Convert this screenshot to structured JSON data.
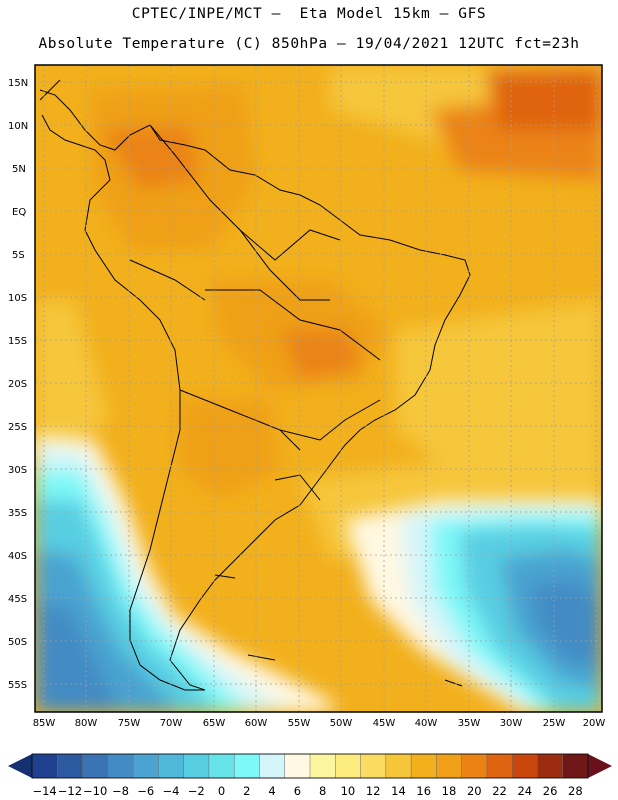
{
  "header": {
    "line1": "CPTEC/INPE/MCT –  Eta Model 15km – GFS",
    "line2": "Absolute Temperature (C) 850hPa – 19/04/2021 12UTC fct=23h"
  },
  "map": {
    "lat_labels": [
      "15N",
      "10N",
      "5N",
      "EQ",
      "5S",
      "10S",
      "15S",
      "20S",
      "25S",
      "30S",
      "35S",
      "40S",
      "45S",
      "50S",
      "55S"
    ],
    "lon_labels": [
      "85W",
      "80W",
      "75W",
      "70W",
      "65W",
      "60W",
      "55W",
      "50W",
      "45W",
      "40W",
      "35W",
      "30W",
      "25W",
      "20W"
    ],
    "gridlines": true
  },
  "colorbar": {
    "labels": [
      "−14",
      "−12",
      "−10",
      "−8",
      "−6",
      "−4",
      "−2",
      "0",
      "2",
      "4",
      "6",
      "8",
      "10",
      "12",
      "14",
      "16",
      "18",
      "20",
      "22",
      "24",
      "26",
      "28"
    ],
    "colors": [
      "#1f3f8f",
      "#2c5aa0",
      "#3a74b4",
      "#428bc4",
      "#4aa3d0",
      "#50b8da",
      "#58cee2",
      "#66e4ea",
      "#7ef8f8",
      "#d4f6fa",
      "#fff8e2",
      "#fdf6a0",
      "#fcec7e",
      "#fbdc62",
      "#f6c63a",
      "#f2b01c",
      "#efa018",
      "#eb8314",
      "#e06410",
      "#c8460c",
      "#9c2c10",
      "#701818"
    ],
    "left_arrow_color": "#14306e",
    "right_arrow_color": "#68101c"
  }
}
